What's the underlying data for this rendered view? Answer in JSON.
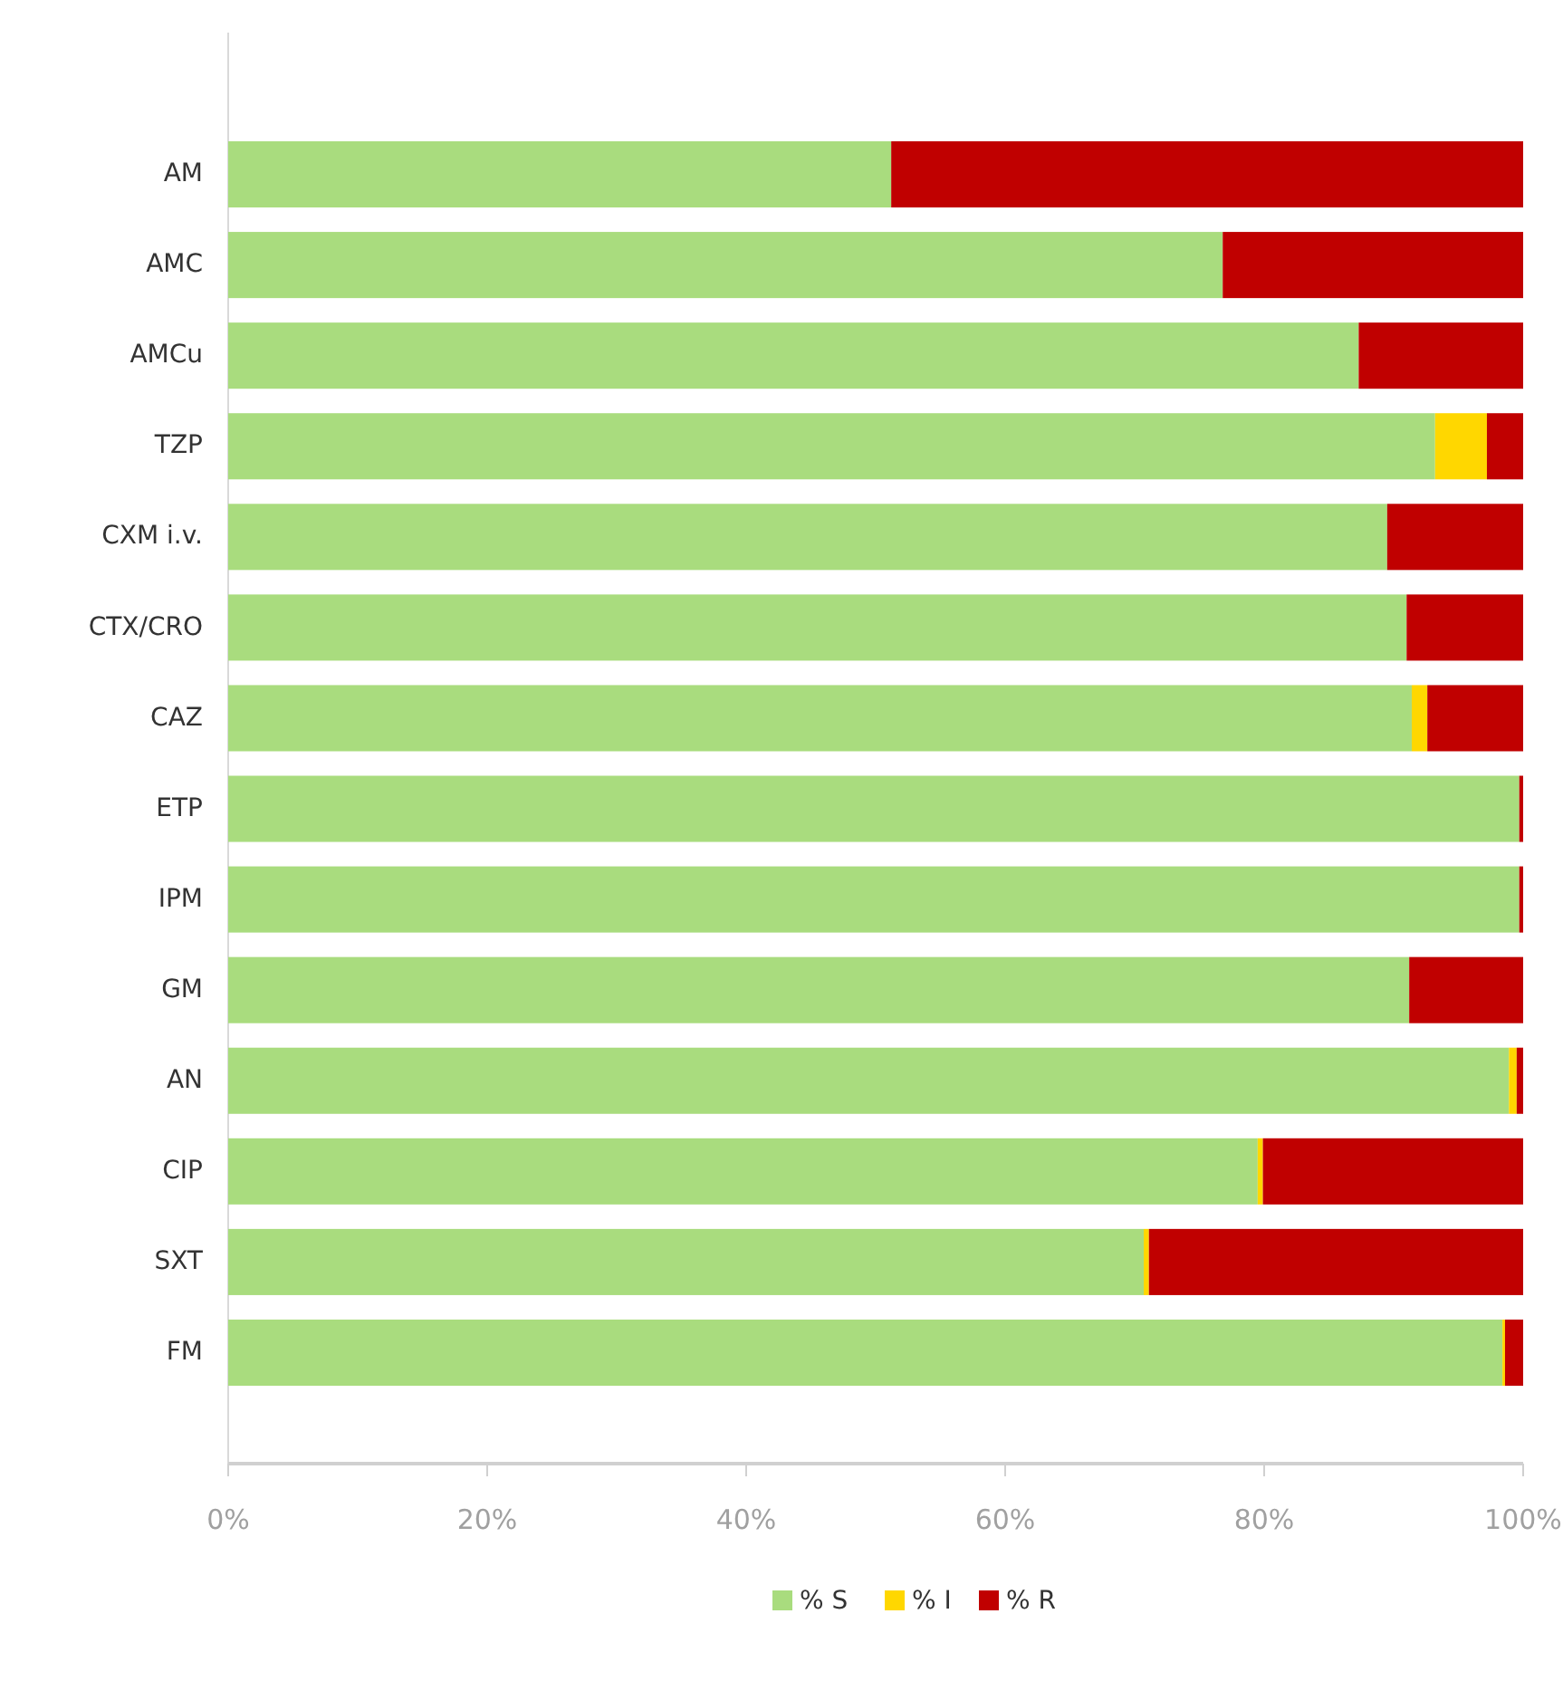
{
  "chart_data": {
    "type": "bar",
    "orientation": "horizontal",
    "stacked": true,
    "categories": [
      "AM",
      "AMC",
      "AMCu",
      "TZP",
      "CXM i.v.",
      "CTX/CRO",
      "CAZ",
      "ETP",
      "IPM",
      "GM",
      "AN",
      "CIP",
      "SXT",
      "FM"
    ],
    "series": [
      {
        "name": "% S",
        "color": "#a9dc7e",
        "values": [
          51.2,
          76.8,
          87.3,
          93.2,
          89.5,
          91.0,
          91.4,
          99.7,
          99.7,
          91.2,
          98.9,
          79.5,
          70.7,
          98.4
        ]
      },
      {
        "name": "% I",
        "color": "#ffd700",
        "values": [
          0,
          0,
          0,
          4.0,
          0,
          0,
          1.2,
          0,
          0,
          0,
          0.6,
          0.4,
          0.4,
          0.2
        ]
      },
      {
        "name": "% R",
        "color": "#c00000",
        "values": [
          48.8,
          23.2,
          12.7,
          2.8,
          10.5,
          9.0,
          7.4,
          0.3,
          0.3,
          8.8,
          0.5,
          20.1,
          28.9,
          1.4
        ]
      }
    ],
    "xlim": [
      0,
      100
    ],
    "xticks": [
      {
        "value": 0,
        "label": "0%"
      },
      {
        "value": 20,
        "label": "20%"
      },
      {
        "value": 40,
        "label": "40%"
      },
      {
        "value": 60,
        "label": "60%"
      },
      {
        "value": 80,
        "label": "80%"
      },
      {
        "value": 100,
        "label": "100%"
      }
    ],
    "grid": false,
    "legend": "bottom"
  }
}
